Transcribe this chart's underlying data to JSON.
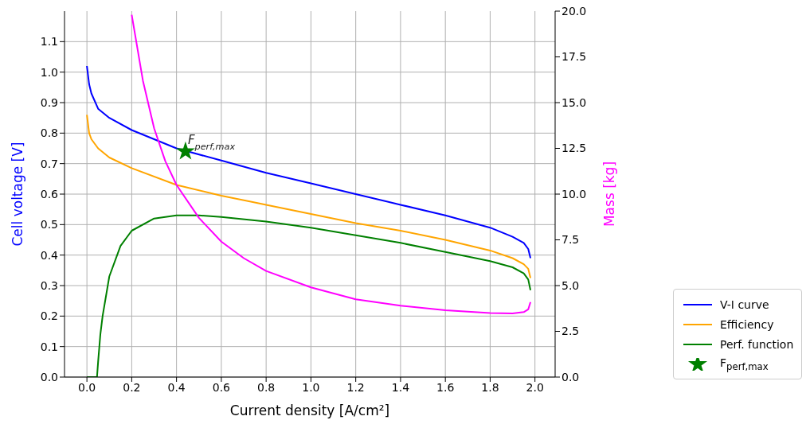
{
  "chart_data": {
    "type": "line",
    "xlabel": "Current density [A/cm²]",
    "ylabel": "Cell voltage [V]",
    "y2label": "Mass [kg]",
    "xlim": [
      -0.1,
      2.09
    ],
    "xticks": [
      {
        "value": 0,
        "label": "0.0"
      },
      {
        "value": 0.2,
        "label": "0.2"
      },
      {
        "value": 0.4,
        "label": "0.4"
      },
      {
        "value": 0.6,
        "label": "0.6"
      },
      {
        "value": 0.8,
        "label": "0.8"
      },
      {
        "value": 1,
        "label": "1.0"
      },
      {
        "value": 1.2,
        "label": "1.2"
      },
      {
        "value": 1.4,
        "label": "1.4"
      },
      {
        "value": 1.6,
        "label": "1.6"
      },
      {
        "value": 1.8,
        "label": "1.8"
      },
      {
        "value": 2,
        "label": "2.0"
      }
    ],
    "ylim": [
      0,
      1.2
    ],
    "yticks": [
      {
        "value": 0,
        "label": "0.0"
      },
      0.1,
      0.2,
      0.3,
      0.4,
      0.5,
      0.6,
      0.7,
      0.8,
      0.9,
      {
        "value": 1,
        "label": "1.0"
      },
      1.1
    ],
    "y2lim": [
      0,
      20
    ],
    "y2ticks": [
      {
        "value": 0,
        "label": "0.0"
      },
      2.5,
      {
        "value": 5,
        "label": "5.0"
      },
      7.5,
      {
        "value": 10,
        "label": "10.0"
      },
      12.5,
      {
        "value": 15,
        "label": "15.0"
      },
      17.5,
      {
        "value": 20,
        "label": "20.0"
      }
    ],
    "grid": true,
    "legend": "right",
    "marker": "none",
    "line_style": "solid",
    "annotations": [
      {
        "text": "F$_{perf,max}$",
        "x": 0.44,
        "y": 0.74
      }
    ],
    "series": [
      {
        "name": "V-I curve",
        "type": "line",
        "color": "#0000ff",
        "x": [
          0,
          0.01,
          0.02,
          0.05,
          0.1,
          0.2,
          0.3,
          0.4,
          0.6,
          0.8,
          1.0,
          1.2,
          1.4,
          1.6,
          1.8,
          1.9,
          1.95,
          1.97,
          1.98
        ],
        "values": [
          1.02,
          0.96,
          0.93,
          0.88,
          0.85,
          0.81,
          0.78,
          0.75,
          0.71,
          0.67,
          0.635,
          0.6,
          0.565,
          0.53,
          0.49,
          0.46,
          0.44,
          0.42,
          0.39
        ]
      },
      {
        "name": "Efficiency",
        "type": "line",
        "color": "#ffa500",
        "x": [
          0,
          0.01,
          0.02,
          0.05,
          0.1,
          0.2,
          0.4,
          0.6,
          0.8,
          1.0,
          1.2,
          1.4,
          1.6,
          1.8,
          1.9,
          1.95,
          1.97,
          1.98
        ],
        "values": [
          0.86,
          0.8,
          0.78,
          0.75,
          0.72,
          0.685,
          0.63,
          0.595,
          0.565,
          0.535,
          0.505,
          0.48,
          0.45,
          0.415,
          0.39,
          0.37,
          0.355,
          0.325
        ]
      },
      {
        "name": "Perf. function",
        "type": "line",
        "color": "#008000",
        "x": [
          0,
          0.045,
          0.05,
          0.06,
          0.07,
          0.1,
          0.15,
          0.2,
          0.3,
          0.4,
          0.5,
          0.6,
          0.8,
          1.0,
          1.2,
          1.4,
          1.6,
          1.8,
          1.9,
          1.95,
          1.97,
          1.98
        ],
        "values": [
          0,
          0,
          0.05,
          0.14,
          0.2,
          0.33,
          0.43,
          0.48,
          0.52,
          0.53,
          0.53,
          0.525,
          0.51,
          0.49,
          0.465,
          0.44,
          0.41,
          0.38,
          0.36,
          0.34,
          0.32,
          0.285
        ]
      },
      {
        "type": "line",
        "axis": "y2",
        "color": "#ff00ff",
        "x": [
          0.2,
          0.25,
          0.3,
          0.35,
          0.4,
          0.5,
          0.6,
          0.7,
          0.8,
          1.0,
          1.2,
          1.4,
          1.6,
          1.8,
          1.9,
          1.95,
          1.97,
          1.98
        ],
        "values": [
          19.8,
          16.2,
          13.6,
          11.8,
          10.5,
          8.7,
          7.4,
          6.5,
          5.8,
          4.9,
          4.25,
          3.9,
          3.65,
          3.5,
          3.48,
          3.55,
          3.7,
          4.1
        ]
      },
      {
        "name": "F$_{perf,max}$",
        "type": "scatter",
        "marker": "star",
        "color": "#008000",
        "x": [
          0.44
        ],
        "values": [
          0.74
        ]
      }
    ]
  }
}
